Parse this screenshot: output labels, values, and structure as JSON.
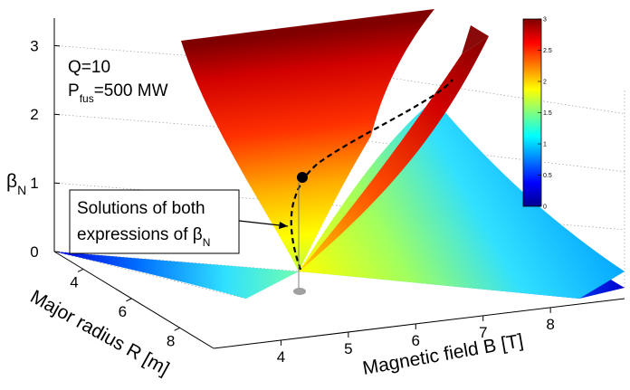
{
  "chart_data": {
    "type": "surface3d",
    "xlabel": "Major radius R [m]",
    "ylabel": "Magnetic field B [T]",
    "zlabel": "βN",
    "zlabel_main": "β",
    "zlabel_sub": "N",
    "x_ticks": [
      "4",
      "6",
      "8"
    ],
    "y_ticks": [
      "4",
      "5",
      "6",
      "7",
      "8"
    ],
    "z_ticks": [
      "0",
      "1",
      "2",
      "3"
    ],
    "zlim": [
      0,
      3.4
    ],
    "colorbar": {
      "ticks": [
        "0",
        "0.5",
        "1",
        "1.5",
        "2",
        "2.5",
        "3"
      ],
      "range": [
        0,
        3
      ],
      "colormap": "jet"
    },
    "params_line1": "Q=10",
    "params_line2_main": "P",
    "params_line2_sub": "fus",
    "params_line2_rest": "=500 MW",
    "annotation_line1": "Solutions of both",
    "annotation_line2_main": "expressions of β",
    "annotation_line2_sub": "N",
    "grid": true,
    "colors": {
      "low": "#00008f",
      "mid": "#7fff7f",
      "high": "#7f0000",
      "solution_curve": "#000000"
    }
  }
}
